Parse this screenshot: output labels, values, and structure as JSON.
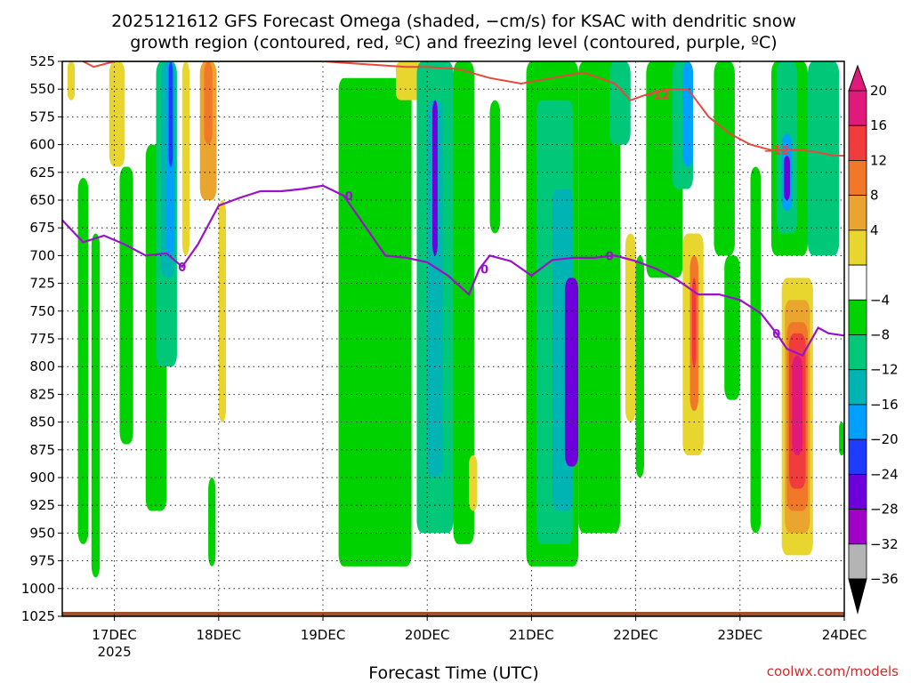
{
  "chart_data": {
    "type": "heatmap",
    "title_line1": "2025121612 GFS Forecast Omega (shaded, −cm/s) for KSAC with dendritic snow",
    "title_line2": "growth region (contoured, red, ºC) and freezing level (contoured, purple, ºC)",
    "xlabel": "Forecast Time (UTC)",
    "credit": "coolwx.com/models",
    "y_ticks": [
      "525",
      "550",
      "575",
      "600",
      "625",
      "650",
      "675",
      "700",
      "725",
      "750",
      "775",
      "800",
      "825",
      "850",
      "875",
      "900",
      "925",
      "950",
      "975",
      "1000",
      "1025"
    ],
    "y_range": [
      525,
      1025
    ],
    "x_ticks": [
      {
        "label": "17DEC",
        "sub": "2025",
        "x": 17.0
      },
      {
        "label": "18DEC",
        "sub": "",
        "x": 18.0
      },
      {
        "label": "19DEC",
        "sub": "",
        "x": 19.0
      },
      {
        "label": "20DEC",
        "sub": "",
        "x": 20.0
      },
      {
        "label": "21DEC",
        "sub": "",
        "x": 21.0
      },
      {
        "label": "22DEC",
        "sub": "",
        "x": 22.0
      },
      {
        "label": "23DEC",
        "sub": "",
        "x": 23.0
      },
      {
        "label": "24DEC",
        "sub": "",
        "x": 24.0
      }
    ],
    "x_range": [
      16.5,
      24.0
    ],
    "grid": true,
    "colorbar": {
      "labels": [
        "20",
        "16",
        "12",
        "8",
        "4",
        "−4",
        "−8",
        "−12",
        "−16",
        "−20",
        "−24",
        "−28",
        "−32",
        "−36"
      ],
      "bins": [
        {
          "lo": 20,
          "hi": 24,
          "color": "#e0197a"
        },
        {
          "lo": 16,
          "hi": 20,
          "color": "#f03c3c"
        },
        {
          "lo": 12,
          "hi": 16,
          "color": "#f07828"
        },
        {
          "lo": 8,
          "hi": 12,
          "color": "#e9a52d"
        },
        {
          "lo": 4,
          "hi": 8,
          "color": "#e8d62e"
        },
        {
          "lo": -4,
          "hi": 4,
          "color": "#ffffff"
        },
        {
          "lo": -8,
          "hi": -4,
          "color": "#00d200"
        },
        {
          "lo": -12,
          "hi": -8,
          "color": "#00c878"
        },
        {
          "lo": -16,
          "hi": -12,
          "color": "#00b4b4"
        },
        {
          "lo": -20,
          "hi": -16,
          "color": "#00a0ff"
        },
        {
          "lo": -24,
          "hi": -20,
          "color": "#1e3cff"
        },
        {
          "lo": -28,
          "hi": -24,
          "color": "#6e00dc"
        },
        {
          "lo": -32,
          "hi": -28,
          "color": "#a000c8"
        },
        {
          "lo": -36,
          "hi": -32,
          "color": "#b4b4b4"
        }
      ],
      "top_arrow_color": "#e0197a",
      "bottom_arrow_color": "#000000"
    },
    "omega_regions": [
      {
        "x0": 16.55,
        "x1": 16.62,
        "p0": 525,
        "p1": 560,
        "value": 6
      },
      {
        "x0": 16.95,
        "x1": 17.1,
        "p0": 525,
        "p1": 620,
        "value": 6
      },
      {
        "x0": 16.65,
        "x1": 16.75,
        "p0": 630,
        "p1": 960,
        "value": -6
      },
      {
        "x0": 16.78,
        "x1": 16.86,
        "p0": 680,
        "p1": 990,
        "value": -6
      },
      {
        "x0": 17.05,
        "x1": 17.18,
        "p0": 620,
        "p1": 870,
        "value": -6
      },
      {
        "x0": 17.3,
        "x1": 17.5,
        "p0": 600,
        "p1": 930,
        "value": -6
      },
      {
        "x0": 17.4,
        "x1": 17.6,
        "p0": 525,
        "p1": 800,
        "value": -10
      },
      {
        "x0": 17.45,
        "x1": 17.58,
        "p0": 525,
        "p1": 720,
        "value": -14
      },
      {
        "x0": 17.5,
        "x1": 17.57,
        "p0": 525,
        "p1": 700,
        "value": -18
      },
      {
        "x0": 17.52,
        "x1": 17.56,
        "p0": 525,
        "p1": 620,
        "value": -22
      },
      {
        "x0": 17.65,
        "x1": 17.72,
        "p0": 525,
        "p1": 700,
        "value": 6
      },
      {
        "x0": 17.82,
        "x1": 17.98,
        "p0": 525,
        "p1": 650,
        "value": 10
      },
      {
        "x0": 17.86,
        "x1": 17.94,
        "p0": 525,
        "p1": 600,
        "value": 14
      },
      {
        "x0": 18.0,
        "x1": 18.07,
        "p0": 650,
        "p1": 850,
        "value": 6
      },
      {
        "x0": 17.9,
        "x1": 17.97,
        "p0": 900,
        "p1": 980,
        "value": -6
      },
      {
        "x0": 19.15,
        "x1": 19.85,
        "p0": 540,
        "p1": 980,
        "value": -6
      },
      {
        "x0": 19.7,
        "x1": 19.95,
        "p0": 525,
        "p1": 560,
        "value": 6
      },
      {
        "x0": 19.9,
        "x1": 20.25,
        "p0": 525,
        "p1": 950,
        "value": -10
      },
      {
        "x0": 20.0,
        "x1": 20.15,
        "p0": 560,
        "p1": 900,
        "value": -16
      },
      {
        "x0": 20.05,
        "x1": 20.1,
        "p0": 560,
        "p1": 700,
        "value": -26
      },
      {
        "x0": 20.25,
        "x1": 20.45,
        "p0": 525,
        "p1": 960,
        "value": -6
      },
      {
        "x0": 20.4,
        "x1": 20.48,
        "p0": 880,
        "p1": 930,
        "value": 6
      },
      {
        "x0": 20.6,
        "x1": 20.7,
        "p0": 560,
        "p1": 680,
        "value": -6
      },
      {
        "x0": 20.95,
        "x1": 21.45,
        "p0": 525,
        "p1": 980,
        "value": -6
      },
      {
        "x0": 21.05,
        "x1": 21.4,
        "p0": 560,
        "p1": 960,
        "value": -10
      },
      {
        "x0": 21.2,
        "x1": 21.4,
        "p0": 640,
        "p1": 930,
        "value": -16
      },
      {
        "x0": 21.32,
        "x1": 21.45,
        "p0": 720,
        "p1": 890,
        "value": -26
      },
      {
        "x0": 21.45,
        "x1": 21.85,
        "p0": 525,
        "p1": 950,
        "value": -6
      },
      {
        "x0": 21.75,
        "x1": 21.95,
        "p0": 525,
        "p1": 600,
        "value": -10
      },
      {
        "x0": 21.9,
        "x1": 22.0,
        "p0": 680,
        "p1": 850,
        "value": 6
      },
      {
        "x0": 22.0,
        "x1": 22.08,
        "p0": 700,
        "p1": 900,
        "value": -6
      },
      {
        "x0": 22.1,
        "x1": 22.45,
        "p0": 525,
        "p1": 720,
        "value": -6
      },
      {
        "x0": 22.35,
        "x1": 22.55,
        "p0": 525,
        "p1": 640,
        "value": -12
      },
      {
        "x0": 22.45,
        "x1": 22.55,
        "p0": 525,
        "p1": 620,
        "value": -20
      },
      {
        "x0": 22.45,
        "x1": 22.65,
        "p0": 680,
        "p1": 880,
        "value": 6
      },
      {
        "x0": 22.52,
        "x1": 22.6,
        "p0": 700,
        "p1": 840,
        "value": 12
      },
      {
        "x0": 22.54,
        "x1": 22.58,
        "p0": 720,
        "p1": 800,
        "value": 17
      },
      {
        "x0": 22.75,
        "x1": 22.95,
        "p0": 525,
        "p1": 700,
        "value": -6
      },
      {
        "x0": 22.85,
        "x1": 23.0,
        "p0": 700,
        "p1": 830,
        "value": -6
      },
      {
        "x0": 23.1,
        "x1": 23.2,
        "p0": 620,
        "p1": 950,
        "value": -6
      },
      {
        "x0": 23.3,
        "x1": 23.65,
        "p0": 525,
        "p1": 700,
        "value": -6
      },
      {
        "x0": 23.35,
        "x1": 23.55,
        "p0": 525,
        "p1": 680,
        "value": -12
      },
      {
        "x0": 23.4,
        "x1": 23.5,
        "p0": 590,
        "p1": 660,
        "value": -18
      },
      {
        "x0": 23.42,
        "x1": 23.48,
        "p0": 610,
        "p1": 650,
        "value": -26
      },
      {
        "x0": 23.65,
        "x1": 23.95,
        "p0": 525,
        "p1": 700,
        "value": -10
      },
      {
        "x0": 23.4,
        "x1": 23.7,
        "p0": 720,
        "p1": 970,
        "value": 6
      },
      {
        "x0": 23.43,
        "x1": 23.67,
        "p0": 740,
        "p1": 950,
        "value": 10
      },
      {
        "x0": 23.45,
        "x1": 23.65,
        "p0": 760,
        "p1": 930,
        "value": 14
      },
      {
        "x0": 23.47,
        "x1": 23.63,
        "p0": 770,
        "p1": 910,
        "value": 18
      },
      {
        "x0": 23.5,
        "x1": 23.6,
        "p0": 790,
        "p1": 880,
        "value": 22
      },
      {
        "x0": 23.95,
        "x1": 24.0,
        "p0": 850,
        "p1": 880,
        "value": -6
      }
    ],
    "freezing_level_0C": {
      "x": [
        16.5,
        16.7,
        16.9,
        17.1,
        17.3,
        17.5,
        17.65,
        17.8,
        18.0,
        18.2,
        18.4,
        18.6,
        18.8,
        19.0,
        19.2,
        19.4,
        19.6,
        19.8,
        20.0,
        20.2,
        20.4,
        20.5,
        20.6,
        20.8,
        21.0,
        21.2,
        21.4,
        21.6,
        21.8,
        22.0,
        22.2,
        22.4,
        22.6,
        22.8,
        23.0,
        23.2,
        23.35,
        23.45,
        23.6,
        23.75,
        23.85,
        24.0
      ],
      "p": [
        668,
        688,
        682,
        690,
        700,
        698,
        710,
        690,
        655,
        648,
        642,
        642,
        640,
        637,
        646,
        673,
        700,
        702,
        706,
        718,
        735,
        712,
        700,
        705,
        718,
        704,
        702,
        702,
        700,
        705,
        712,
        722,
        735,
        735,
        740,
        752,
        770,
        784,
        790,
        765,
        770,
        772
      ],
      "label": "0"
    },
    "dgz_minus12C": {
      "x": [
        16.7,
        16.8,
        17.0,
        17.2,
        17.5,
        18.0,
        19.0,
        19.8,
        20.0,
        20.3,
        20.6,
        20.9,
        21.2,
        21.5,
        21.8,
        21.95,
        22.1,
        22.3,
        22.5,
        22.7,
        22.9,
        23.1,
        23.3,
        23.45,
        23.6,
        23.75,
        23.9,
        24.0
      ],
      "p": [
        525,
        530,
        525,
        525,
        525,
        525,
        525,
        530,
        530,
        532,
        540,
        545,
        540,
        535,
        545,
        560,
        555,
        550,
        550,
        575,
        590,
        600,
        605,
        605,
        605,
        607,
        610,
        610
      ],
      "labels": [
        "−12",
        "−12"
      ]
    },
    "surface_band_pressure": [
      1021,
      1025
    ]
  }
}
